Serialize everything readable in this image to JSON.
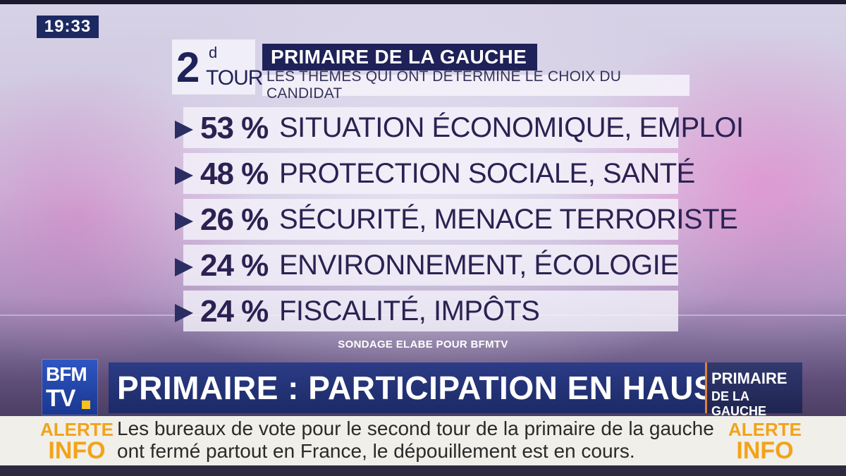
{
  "clock": "19:33",
  "graphic": {
    "tour_number": "2",
    "tour_sup": "d",
    "tour_word": "TOUR",
    "title": "PRIMAIRE DE LA GAUCHE",
    "subtitle": "LES THÈMES QUI ONT DÉTERMINÉ LE CHOIX DU CANDIDAT",
    "rows": [
      {
        "pct": "53 %",
        "label": "SITUATION ÉCONOMIQUE, EMPLOI"
      },
      {
        "pct": "48 %",
        "label": "PROTECTION SOCIALE, SANTÉ"
      },
      {
        "pct": "26 %",
        "label": "SÉCURITÉ, MENACE TERRORISTE"
      },
      {
        "pct": "24 %",
        "label": "ENVIRONNEMENT, ÉCOLOGIE"
      },
      {
        "pct": "24 %",
        "label": "FISCALITÉ, IMPÔTS"
      }
    ],
    "source": "SONDAGE ELABE POUR BFMTV"
  },
  "logo": {
    "line1": "BFM",
    "line2": "TV"
  },
  "headline": "PRIMAIRE : PARTICIPATION EN HAUSSE",
  "tag": {
    "line1": "PRIMAIRE",
    "line2": "DE LA GAUCHE"
  },
  "ticker": {
    "alert_line1": "ALERTE",
    "alert_line2": "INFO",
    "text": "Les bureaux de vote pour le second tour de la primaire de la gauche ont fermé partout en France, le dépouillement est en cours."
  },
  "colors": {
    "accent_orange": "#f2a31a",
    "navy": "#1f2258",
    "logo_blue": "#2f56c2"
  }
}
